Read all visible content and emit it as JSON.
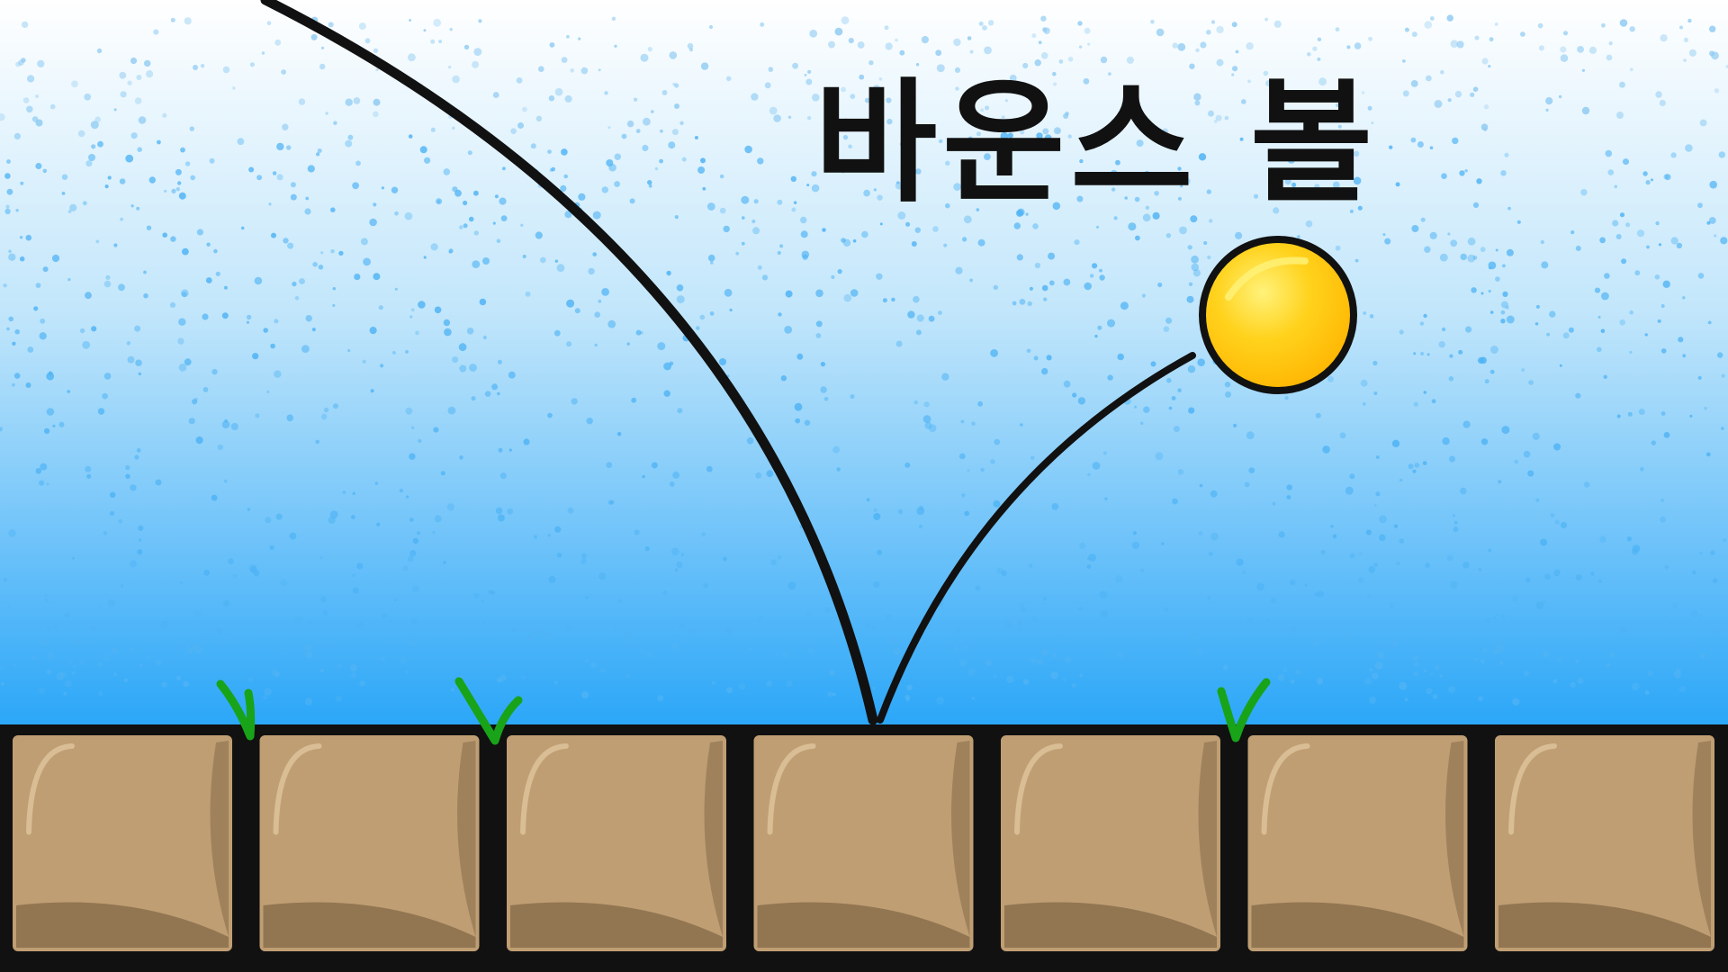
{
  "game": {
    "title": "바운스 볼"
  },
  "colors": {
    "sky_top": "#ffffff",
    "sky_mid": "#c2e6fb",
    "sky_bottom": "#2aa6f8",
    "speckle": "#4fb3f4",
    "ball_fill": "#ffd21c",
    "ball_shade": "#ffb400",
    "ball_highlight": "#fff27a",
    "outline": "#111111",
    "block_fill": "#bf9e73",
    "block_shadow": "#8a6f4c",
    "block_highlight": "#d9bd94",
    "grass": "#19a319"
  },
  "blocks_count": 7,
  "grass_tufts_count": 3
}
